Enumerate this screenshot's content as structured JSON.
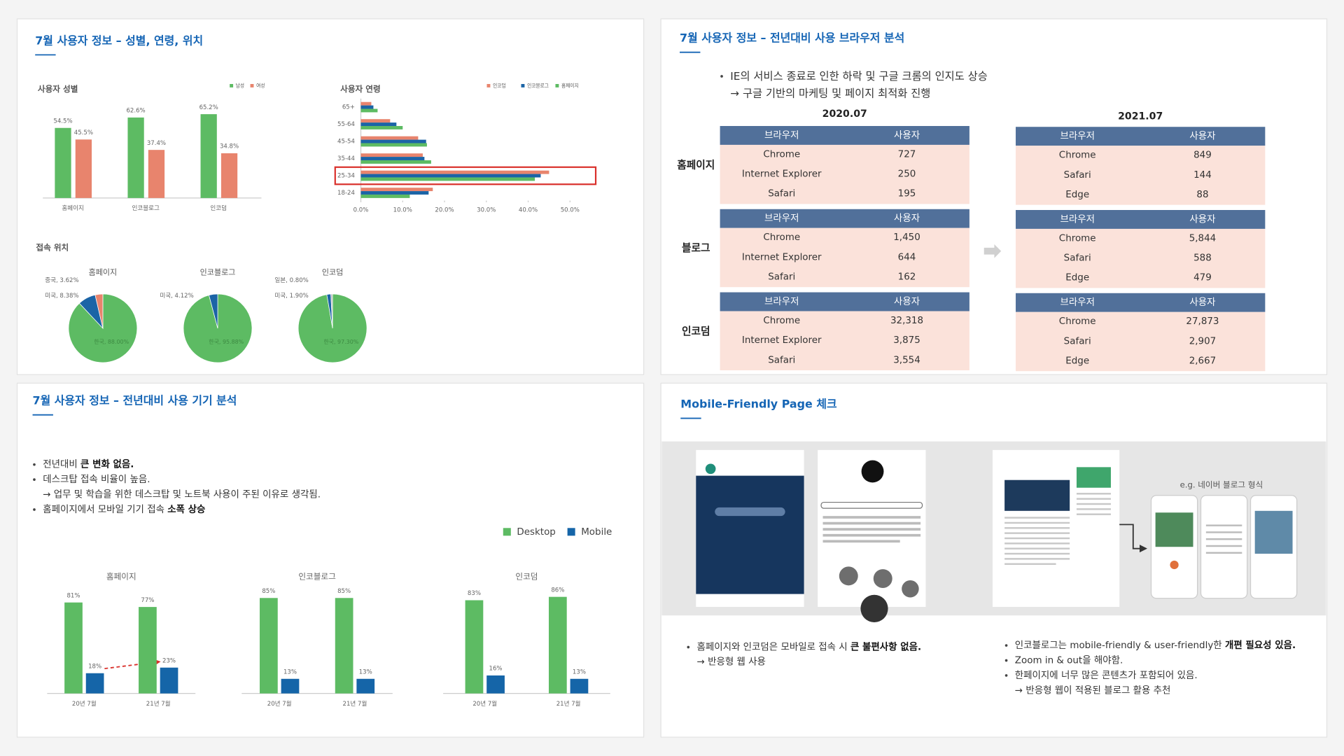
{
  "panels": [
    {
      "title": "7월 사용자 정보 – 성별, 연령, 위치"
    },
    {
      "title": "7월 사용자 정보 – 전년대비 사용 브라우저 분석",
      "bullets": [
        {
          "text": "IE의 서비스 종료로 인한 하락 및 구글 크롬의 인지도 상승"
        },
        {
          "text": "→ 구글 기반의 마케팅 및 페이지 최적화 진행",
          "sub": true
        }
      ],
      "headers": [
        "브라우저",
        "사용자"
      ],
      "groups": [
        "홈페이지",
        "블로그",
        "인코덤"
      ],
      "tables": [
        {
          "year": "2020.07",
          "groups": [
            {
              "rows": [
                [
                  "Chrome",
                  "727"
                ],
                [
                  "Internet Explorer",
                  "250"
                ],
                [
                  "Safari",
                  "195"
                ]
              ]
            },
            {
              "rows": [
                [
                  "Chrome",
                  "1,450"
                ],
                [
                  "Internet Explorer",
                  "644"
                ],
                [
                  "Safari",
                  "162"
                ]
              ]
            },
            {
              "rows": [
                [
                  "Chrome",
                  "32,318"
                ],
                [
                  "Internet Explorer",
                  "3,875"
                ],
                [
                  "Safari",
                  "3,554"
                ]
              ]
            }
          ]
        },
        {
          "year": "2021.07",
          "groups": [
            {
              "rows": [
                [
                  "Chrome",
                  "849"
                ],
                [
                  "Safari",
                  "144"
                ],
                [
                  "Edge",
                  "88"
                ]
              ]
            },
            {
              "rows": [
                [
                  "Chrome",
                  "5,844"
                ],
                [
                  "Safari",
                  "588"
                ],
                [
                  "Edge",
                  "479"
                ]
              ]
            },
            {
              "rows": [
                [
                  "Chrome",
                  "27,873"
                ],
                [
                  "Safari",
                  "2,907"
                ],
                [
                  "Edge",
                  "2,667"
                ]
              ]
            }
          ]
        }
      ]
    },
    {
      "title": "7월 사용자 정보 – 전년대비 사용 기기 분석",
      "bullets": [
        {
          "text": "전년대비 ",
          "bold": "큰 변화 없음."
        },
        {
          "text": "데스크탑 접속 비율이 높음."
        },
        {
          "text": "→ 업무 및 학습을 위한 데스크탑 및 노트북 사용이 주된 이유로 생각됨.",
          "sub": true
        },
        {
          "text": "홈페이지에서 모바일 기기 접속 ",
          "bold": "소폭 상승"
        }
      ]
    },
    {
      "title": "Mobile-Friendly Page 체크",
      "caption": "e.g. 네이버 블로그 형식",
      "bullets_left": [
        {
          "text": "홈페이지와 인코덤은 모바일로 접속 시 ",
          "bold": "큰 불편사항 없음."
        },
        {
          "text": "→ 반응형 웹 사용",
          "sub": true
        }
      ],
      "bullets_right": [
        {
          "text": "인코블로그는 mobile-friendly & user-friendly한 ",
          "bold": "개편 필요성 있음."
        },
        {
          "text": "Zoom in & out을 해야함."
        },
        {
          "text": "한페이지에 너무 많은 콘텐츠가 포함되어 있음."
        },
        {
          "text": "→ 반응형 웹이 적용된 블로그 활용 추천",
          "sub": true
        }
      ]
    }
  ],
  "chart_data": [
    {
      "type": "bar",
      "title": "사용자 성별",
      "categories": [
        "홈페이지",
        "인코블로그",
        "인코덤"
      ],
      "series": [
        {
          "name": "남성",
          "color": "#5dbb63",
          "values": [
            54.5,
            62.6,
            65.2
          ],
          "value_labels": [
            "54.5%",
            "62.6%",
            "65.2%"
          ]
        },
        {
          "name": "여성",
          "color": "#e8846d",
          "values": [
            45.5,
            37.4,
            34.8
          ],
          "value_labels": [
            "45.5%",
            "37.4%",
            "34.8%"
          ]
        }
      ]
    },
    {
      "type": "barh",
      "title": "사용자 연령",
      "categories": [
        "65+",
        "55-64",
        "45-54",
        "35-44",
        "25-34",
        "18-24"
      ],
      "series": [
        {
          "name": "인코덤",
          "color": "#e8846d",
          "values": [
            2.5,
            7,
            13.7,
            14.8,
            45,
            17.2
          ]
        },
        {
          "name": "인코블로그",
          "color": "#1b64a6",
          "values": [
            3,
            8.5,
            15.6,
            15.2,
            43,
            16.2
          ]
        },
        {
          "name": "홈페이지",
          "color": "#5dbb63",
          "values": [
            4,
            10,
            15.8,
            16.8,
            41.6,
            11.7
          ]
        }
      ],
      "xlim": [
        0,
        50
      ],
      "xticks": [
        {
          "value": 0,
          "label": "0.0%"
        },
        {
          "value": 10,
          "label": "10.0%"
        },
        {
          "value": 20,
          "label": "20.0%"
        },
        {
          "value": 30,
          "label": "30.0%"
        },
        {
          "value": 40,
          "label": "40.0%"
        },
        {
          "value": 50,
          "label": "50.0%"
        }
      ]
    },
    {
      "type": "pie",
      "title": "접속 위치",
      "series": [
        {
          "name": "홈페이지",
          "labels": [
            "한국, 88.00%",
            "미국, 8.38%",
            "중국, 3.62%"
          ],
          "values": [
            88,
            8.38,
            3.62
          ],
          "colors": [
            "#5dbb63",
            "#1b64a6",
            "#e8846d"
          ]
        },
        {
          "name": "인코블로그",
          "labels": [
            "한국, 95.88%",
            "미국, 4.12%"
          ],
          "values": [
            95.88,
            4.12
          ],
          "colors": [
            "#5dbb63",
            "#1b64a6"
          ]
        },
        {
          "name": "인코덤",
          "labels": [
            "한국, 97.30%",
            "미국, 1.90%",
            "일본, 0.80%"
          ],
          "values": [
            97.3,
            1.9,
            0.8
          ],
          "colors": [
            "#5dbb63",
            "#1b64a6",
            "#bdbdbd"
          ]
        }
      ]
    },
    {
      "type": "bar",
      "series": [
        {
          "name": "Desktop",
          "color": "#5dbb63"
        },
        {
          "name": "Mobile",
          "color": "#1565a8"
        }
      ],
      "facets": [
        {
          "title": "홈페이지",
          "categories": [
            "20년 7월",
            "21년 7월"
          ],
          "values": [
            [
              81,
              77
            ],
            [
              18,
              23
            ]
          ],
          "value_labels": [
            [
              "81%",
              "77%"
            ],
            [
              "18%",
              "23%"
            ]
          ]
        },
        {
          "title": "인코블로그",
          "categories": [
            "20년 7월",
            "21년 7월"
          ],
          "values": [
            [
              85,
              85
            ],
            [
              13,
              13
            ]
          ],
          "value_labels": [
            [
              "85%",
              "85%"
            ],
            [
              "13%",
              "13%"
            ]
          ]
        },
        {
          "title": "인코덤",
          "categories": [
            "20년 7월",
            "21년 7월"
          ],
          "values": [
            [
              83,
              86
            ],
            [
              16,
              13
            ]
          ],
          "value_labels": [
            [
              "83%",
              "86%"
            ],
            [
              "16%",
              "13%"
            ]
          ]
        }
      ]
    }
  ]
}
